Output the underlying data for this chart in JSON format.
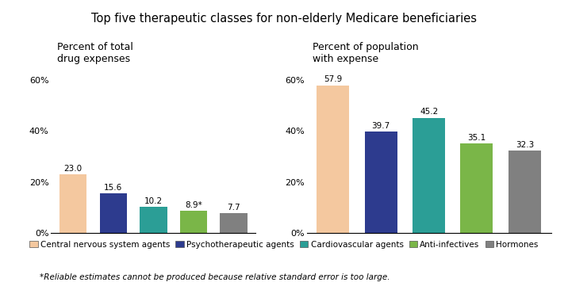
{
  "title": "Top five therapeutic classes for non-elderly Medicare beneficiaries",
  "left_title": "Percent of total\ndrug expenses",
  "right_title": "Percent of population\nwith expense",
  "categories": [
    "Central nervous system agents",
    "Psychotherapeutic agents",
    "Cardiovascular agents",
    "Anti-infectives",
    "Hormones"
  ],
  "left_values": [
    23.0,
    15.6,
    10.2,
    8.9,
    7.7
  ],
  "right_values": [
    57.9,
    39.7,
    45.2,
    35.1,
    32.3
  ],
  "left_labels": [
    "23.0",
    "15.6",
    "10.2",
    "8.9*",
    "7.7"
  ],
  "right_labels": [
    "57.9",
    "39.7",
    "45.2",
    "35.1",
    "32.3"
  ],
  "bar_colors": [
    "#F4C89F",
    "#2D3B8E",
    "#2B9E96",
    "#7AB648",
    "#808080"
  ],
  "ylim": [
    0,
    65
  ],
  "yticks": [
    0,
    20,
    40,
    60
  ],
  "ytick_labels": [
    "0%",
    "20%",
    "40%",
    "60%"
  ],
  "footnote": "*Reliable estimates cannot be produced because relative standard error is too large.",
  "legend_labels": [
    "Central nervous system agents",
    "Psychotherapeutic agents",
    "Cardiovascular agents",
    "Anti-infectives",
    "Hormones"
  ],
  "background_color": "#ffffff",
  "title_fontsize": 10.5,
  "label_fontsize": 7.5,
  "tick_fontsize": 8,
  "legend_fontsize": 7.5,
  "footnote_fontsize": 7.5,
  "subplot_title_fontsize": 9
}
